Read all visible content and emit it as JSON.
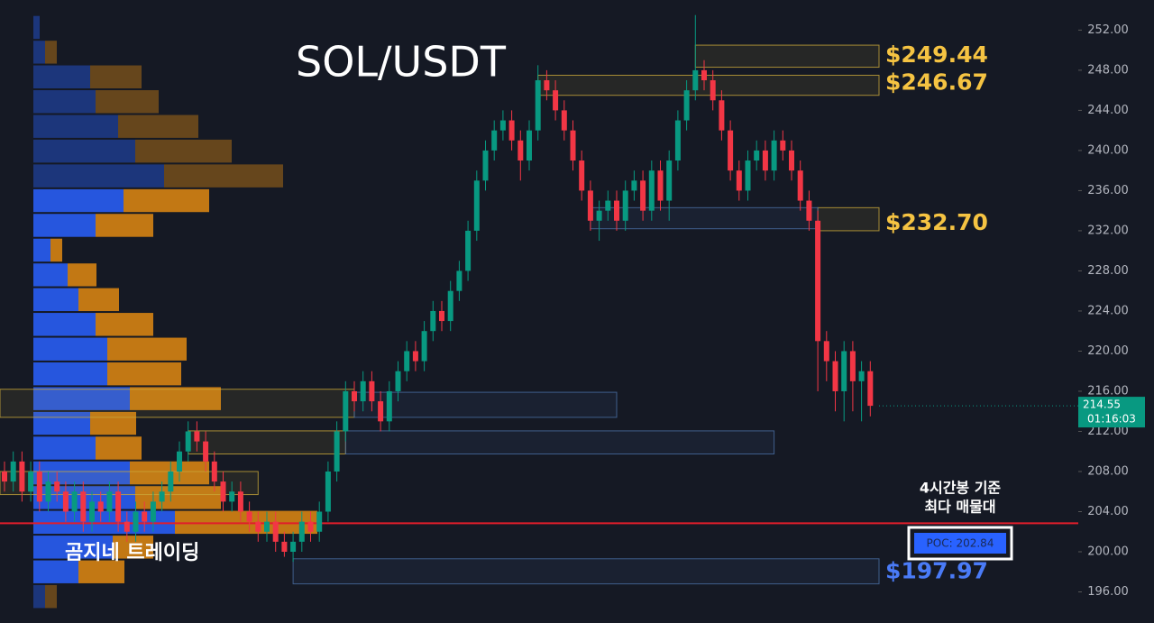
{
  "chart_data": {
    "type": "candlestick",
    "title": "SOL/USDT",
    "watermark": "곰지네 트레이딩",
    "ylim": [
      192.9,
      255
    ],
    "yticks": [
      {
        "value": 196,
        "label": "196.00"
      },
      {
        "value": 200,
        "label": "200.00"
      },
      {
        "value": 204,
        "label": "204.00"
      },
      {
        "value": 208,
        "label": "208.00"
      },
      {
        "value": 212,
        "label": "212.00"
      },
      {
        "value": 216,
        "label": "216.00"
      },
      {
        "value": 220,
        "label": "220.00"
      },
      {
        "value": 224,
        "label": "224.00"
      },
      {
        "value": 228,
        "label": "228.00"
      },
      {
        "value": 232,
        "label": "232.00"
      },
      {
        "value": 236,
        "label": "236.00"
      },
      {
        "value": 240,
        "label": "240.00"
      },
      {
        "value": 244,
        "label": "244.00"
      },
      {
        "value": 248,
        "label": "248.00"
      },
      {
        "value": 252,
        "label": "252.00"
      }
    ],
    "grid": false,
    "up_color": "#089981",
    "down_color": "#f23645",
    "open": [
      208,
      207,
      209,
      206,
      208,
      205,
      207,
      206,
      204,
      206,
      203,
      205,
      204,
      206,
      203,
      202,
      204,
      203,
      205,
      206,
      208,
      210,
      212,
      211,
      209,
      207,
      205,
      206,
      204,
      203,
      202,
      203,
      201,
      200,
      201,
      203,
      202,
      204,
      208,
      212,
      216,
      215,
      217,
      215,
      213,
      216,
      218,
      220,
      219,
      222,
      224,
      223,
      226,
      228,
      232,
      237,
      240,
      242,
      243,
      241,
      239,
      242,
      247,
      246,
      244,
      242,
      239,
      236,
      233,
      234,
      235,
      233,
      236,
      237,
      234,
      238,
      235,
      239,
      243,
      246,
      248,
      247,
      245,
      242,
      238,
      236,
      239,
      240,
      238,
      241,
      240,
      238,
      235,
      233,
      221,
      219,
      216,
      220,
      217,
      218
    ],
    "high": [
      209,
      210,
      210,
      209,
      209,
      208,
      208,
      207,
      207,
      207,
      206,
      206,
      207,
      207,
      204,
      205,
      205,
      206,
      207,
      209,
      211,
      213,
      213,
      212,
      210,
      208,
      207,
      207,
      205,
      204,
      204,
      204,
      202,
      202,
      204,
      204,
      205,
      209,
      213,
      217,
      217,
      218,
      218,
      216,
      217,
      219,
      221,
      221,
      223,
      225,
      225,
      227,
      229,
      233,
      238,
      241,
      243,
      244,
      244,
      242,
      243,
      248.5,
      248,
      247,
      245,
      243,
      240,
      237,
      235,
      236,
      236,
      237,
      238,
      238,
      239,
      239,
      240,
      244,
      247,
      253.5,
      249,
      248,
      246,
      243,
      239,
      240,
      241,
      241,
      242,
      242,
      241,
      239,
      236,
      234,
      222,
      220,
      221,
      221,
      219,
      219
    ],
    "low": [
      206,
      206,
      205,
      205,
      204,
      204,
      205,
      203,
      203,
      202,
      202,
      203,
      203,
      202,
      201,
      201,
      202,
      202,
      204,
      205,
      207,
      209,
      210,
      208,
      206,
      204,
      204,
      203,
      202,
      201,
      201,
      200,
      199.5,
      199,
      200,
      201,
      201,
      203,
      207,
      211,
      214,
      214,
      214,
      212,
      212,
      215,
      217,
      218,
      218,
      221,
      222,
      222,
      225,
      227,
      231,
      236,
      239,
      241,
      240,
      237,
      238,
      241,
      245,
      243,
      241,
      238,
      235,
      232,
      231,
      233,
      232,
      232,
      235,
      233,
      233,
      234,
      233,
      238,
      242,
      245,
      246,
      244,
      241,
      237,
      235,
      235,
      238,
      237,
      237,
      239,
      237,
      234,
      232,
      216,
      217,
      214,
      213,
      214,
      213,
      213.5
    ],
    "close": [
      207,
      209,
      206,
      208,
      205,
      207,
      206,
      204,
      206,
      203,
      205,
      204,
      206,
      203,
      202,
      204,
      203,
      205,
      206,
      208,
      210,
      212,
      211,
      209,
      207,
      205,
      206,
      204,
      203,
      202,
      203,
      201,
      200,
      201,
      203,
      202,
      204,
      208,
      212,
      216,
      215,
      217,
      215,
      213,
      216,
      218,
      220,
      219,
      222,
      224,
      223,
      226,
      228,
      232,
      237,
      240,
      242,
      243,
      241,
      239,
      242,
      247,
      246,
      244,
      242,
      239,
      236,
      233,
      234,
      235,
      233,
      236,
      237,
      234,
      238,
      235,
      239,
      243,
      246,
      248,
      247,
      245,
      242,
      238,
      236,
      239,
      240,
      238,
      241,
      240,
      238,
      235,
      233,
      221,
      219,
      216,
      220,
      217,
      218,
      214.55
    ],
    "last_price": {
      "value": 214.55,
      "label": "214.55"
    },
    "countdown": "01:16:03",
    "volume_profile": {
      "bins": [
        253.5,
        251.03,
        248.57,
        246.1,
        243.63,
        241.17,
        238.7,
        236.23,
        233.77,
        231.3,
        228.83,
        226.37,
        223.9,
        221.43,
        218.97,
        216.5,
        214.03,
        211.57,
        209.1,
        206.63,
        204.17,
        201.7,
        199.23,
        196.77,
        194.3
      ],
      "buy": [
        7,
        13,
        63,
        69,
        94,
        113,
        145,
        100,
        69,
        19,
        38,
        50,
        69,
        82,
        82,
        107,
        63,
        69,
        107,
        113,
        157,
        88,
        50,
        13
      ],
      "sell": [
        0,
        13,
        57,
        70,
        89,
        107,
        132,
        95,
        64,
        13,
        32,
        45,
        64,
        88,
        82,
        101,
        51,
        51,
        88,
        95,
        158,
        45,
        51,
        13
      ],
      "buy_color": "#2962ff",
      "sell_color": "#e08a12",
      "value_area": [
        196.77,
        236.23
      ]
    },
    "zones": [
      {
        "start": 79,
        "end": 100,
        "low": 248.3,
        "high": 250.5,
        "color": "#c9a83a"
      },
      {
        "start": 61,
        "end": 100,
        "low": 245.5,
        "high": 247.5,
        "color": "#c9a83a"
      },
      {
        "start": 93,
        "end": 100,
        "low": 232.0,
        "high": 234.3,
        "color": "#c9a83a"
      },
      {
        "start": 67,
        "end": 93,
        "low": 232.2,
        "high": 234.3,
        "color": "#4a6fa5"
      },
      {
        "start": -1,
        "end": 40,
        "low": 213.4,
        "high": 216.2,
        "color": "#c9a83a"
      },
      {
        "start": 40,
        "end": 70,
        "low": 213.4,
        "high": 215.9,
        "color": "#4a6fa5"
      },
      {
        "start": 21,
        "end": 39,
        "low": 209.75,
        "high": 212.05,
        "color": "#c9a83a"
      },
      {
        "start": 39,
        "end": 88,
        "low": 209.75,
        "high": 212.05,
        "color": "#4a6fa5"
      },
      {
        "start": -1,
        "end": 29,
        "low": 205.7,
        "high": 208.0,
        "color": "#c9a83a"
      },
      {
        "start": 33,
        "end": 100,
        "low": 196.8,
        "high": 199.3,
        "color": "#4a6fa5"
      }
    ],
    "annotations": [
      {
        "value": 249.44,
        "label": "$249.44",
        "color": "#f5c342"
      },
      {
        "value": 246.67,
        "label": "$246.67",
        "color": "#f5c342"
      },
      {
        "value": 232.7,
        "label": "$232.70",
        "color": "#f5c342"
      },
      {
        "value": 197.97,
        "label": "$197.97",
        "color": "#4a7bf7"
      }
    ],
    "poc": {
      "value": 202.84,
      "label": "POC: 202.84",
      "color": "#e01e2b",
      "note": [
        "4시간봉 기준",
        "최다 매물대"
      ]
    }
  }
}
